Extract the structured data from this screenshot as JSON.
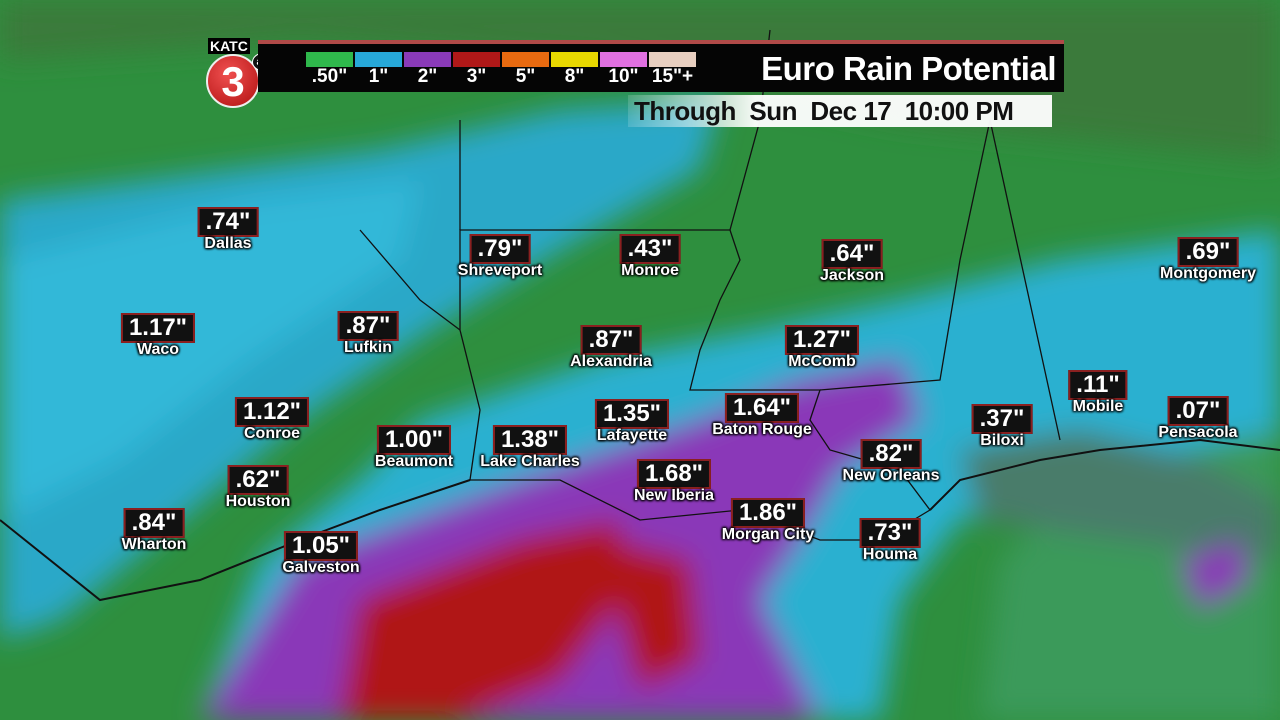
{
  "logo": {
    "station": "KATC",
    "channel": "3",
    "network": "abc"
  },
  "header": {
    "title": "Euro Rain Potential",
    "subtitle": "Through  Sun  Dec 17  10:00 PM"
  },
  "legend": [
    {
      "label": ".50\"",
      "color": "#2fb84c"
    },
    {
      "label": "1\"",
      "color": "#27a8d8"
    },
    {
      "label": "2\"",
      "color": "#8a3ab8"
    },
    {
      "label": "3\"",
      "color": "#b01818"
    },
    {
      "label": "5\"",
      "color": "#e86a10"
    },
    {
      "label": "8\"",
      "color": "#e8d800"
    },
    {
      "label": "10\"",
      "color": "#e070e0"
    },
    {
      "label": "15\"+",
      "color": "#e8cfc0"
    }
  ],
  "cities": [
    {
      "name": "Dallas",
      "amount": ".74\""
    },
    {
      "name": "Shreveport",
      "amount": ".79\""
    },
    {
      "name": "Monroe",
      "amount": ".43\""
    },
    {
      "name": "Jackson",
      "amount": ".64\""
    },
    {
      "name": "Montgomery",
      "amount": ".69\""
    },
    {
      "name": "Waco",
      "amount": "1.17\""
    },
    {
      "name": "Lufkin",
      "amount": ".87\""
    },
    {
      "name": "Alexandria",
      "amount": ".87\""
    },
    {
      "name": "McComb",
      "amount": "1.27\""
    },
    {
      "name": "Mobile",
      "amount": ".11\""
    },
    {
      "name": "Conroe",
      "amount": "1.12\""
    },
    {
      "name": "Lafayette",
      "amount": "1.35\""
    },
    {
      "name": "Baton Rouge",
      "amount": "1.64\""
    },
    {
      "name": "Biloxi",
      "amount": ".37\""
    },
    {
      "name": "Pensacola",
      "amount": ".07\""
    },
    {
      "name": "Beaumont",
      "amount": "1.00\""
    },
    {
      "name": "Lake Charles",
      "amount": "1.38\""
    },
    {
      "name": "New Iberia",
      "amount": "1.68\""
    },
    {
      "name": "New Orleans",
      "amount": ".82\""
    },
    {
      "name": "Houston",
      "amount": ".62\""
    },
    {
      "name": "Wharton",
      "amount": ".84\""
    },
    {
      "name": "Morgan City",
      "amount": "1.86\""
    },
    {
      "name": "Houma",
      "amount": ".73\""
    },
    {
      "name": "Galveston",
      "amount": "1.05\""
    }
  ]
}
